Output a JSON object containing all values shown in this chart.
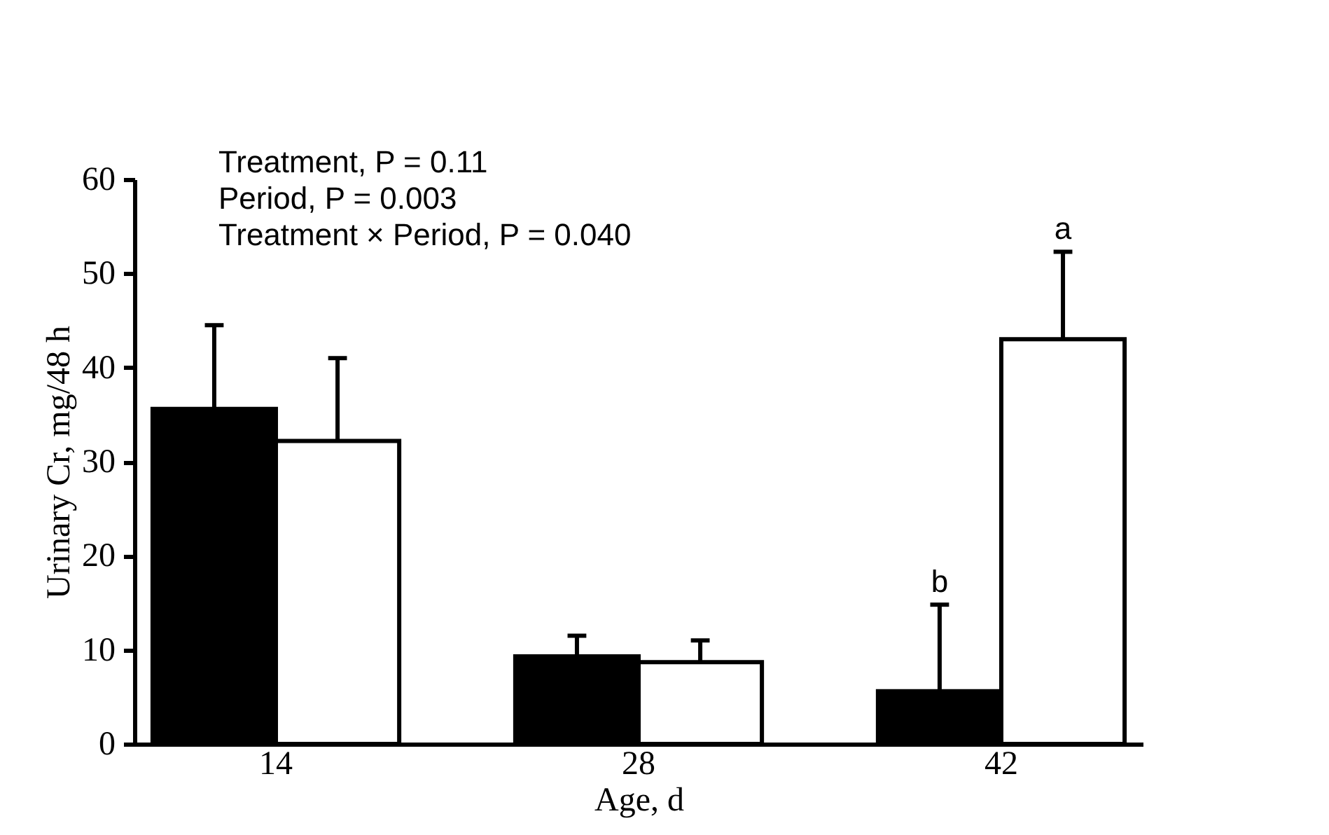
{
  "chart_data": {
    "type": "bar",
    "xlabel": "Age, d",
    "ylabel": "Urinary Cr, mg/48 h",
    "categories": [
      "14",
      "28",
      "42"
    ],
    "series": [
      {
        "color": "#000000",
        "values": [
          35.6,
          9.3,
          5.6
        ],
        "errors": [
          [
            35.6,
            44.5
          ],
          [
            9.3,
            11.5
          ],
          [
            5.6,
            14.8
          ]
        ]
      },
      {
        "color": "#ffffff",
        "values": [
          32.2,
          8.7,
          43.0
        ],
        "errors": [
          [
            32.2,
            41.0
          ],
          [
            8.7,
            11.0
          ],
          [
            43.0,
            52.3
          ]
        ]
      }
    ],
    "ylim": [
      0,
      60
    ],
    "yticks": [
      0,
      10,
      20,
      30,
      40,
      50,
      60
    ],
    "annotations": [
      "Treatment, P = 0.11",
      "Period, P = 0.003",
      "Treatment × Period, P = 0.040",
      "b",
      "a"
    ]
  }
}
